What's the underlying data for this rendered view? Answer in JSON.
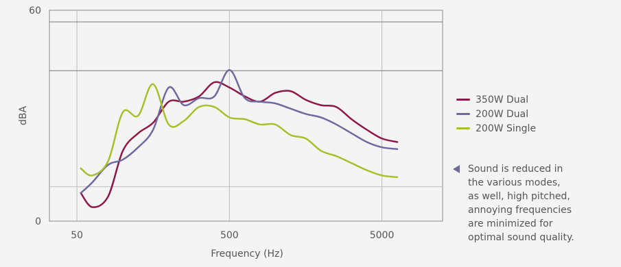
{
  "chart_data": {
    "type": "line",
    "xlabel": "Frequency (Hz)",
    "ylabel": "dBA",
    "x_scale": "log",
    "x_ticks": [
      {
        "value": 50,
        "label": "50"
      },
      {
        "value": 500,
        "label": "500"
      },
      {
        "value": 5000,
        "label": "5000"
      }
    ],
    "y_ticks": [
      {
        "value": 0,
        "label": "0"
      },
      {
        "value": 60,
        "label": "60"
      }
    ],
    "xlim": [
      33,
      12500
    ],
    "ylim": [
      0,
      60
    ],
    "reference_lines": [
      9.8,
      42.8,
      56.7
    ],
    "series": [
      {
        "name": "350W Dual",
        "color": "#8e1846",
        "x": [
          53,
          63,
          80,
          100,
          126,
          158,
          200,
          251,
          316,
          398,
          501,
          631,
          794,
          1000,
          1259,
          1585,
          1995,
          2512,
          3162,
          3981,
          5012,
          6310
        ],
        "y": [
          8,
          4,
          7,
          20,
          25,
          28,
          34,
          34,
          35.5,
          39.5,
          38,
          35.5,
          34,
          36.5,
          37,
          34.5,
          33,
          32.5,
          29,
          26,
          23.5,
          22.5
        ]
      },
      {
        "name": "200W Dual",
        "color": "#6e6a9e",
        "x": [
          53,
          63,
          80,
          100,
          126,
          158,
          200,
          251,
          316,
          398,
          501,
          631,
          794,
          1000,
          1259,
          1585,
          1995,
          2512,
          3162,
          3981,
          5012,
          6310
        ],
        "y": [
          8,
          11,
          16,
          17.5,
          21,
          26,
          38,
          33,
          35,
          35.5,
          43,
          35,
          34,
          33.5,
          32,
          30.5,
          29.5,
          27.5,
          25,
          22.5,
          21,
          20.5
        ]
      },
      {
        "name": "200W Single",
        "color": "#a8bf2a",
        "x": [
          53,
          63,
          80,
          100,
          126,
          158,
          200,
          251,
          316,
          398,
          501,
          631,
          794,
          1000,
          1259,
          1585,
          1995,
          2512,
          3162,
          3981,
          5012,
          6310
        ],
        "y": [
          15,
          13,
          17,
          31,
          30,
          39,
          27.5,
          28.5,
          32.5,
          32.5,
          29.5,
          29,
          27.5,
          27.5,
          24.5,
          23.5,
          20,
          18.5,
          16.5,
          14.5,
          13,
          12.5
        ]
      }
    ],
    "legend": {
      "position": "right"
    },
    "annotation": "Sound is reduced in\nthe various modes,\nas well, high pitched,\nannoying frequencies\nare minimized for\noptimal sound quality."
  }
}
